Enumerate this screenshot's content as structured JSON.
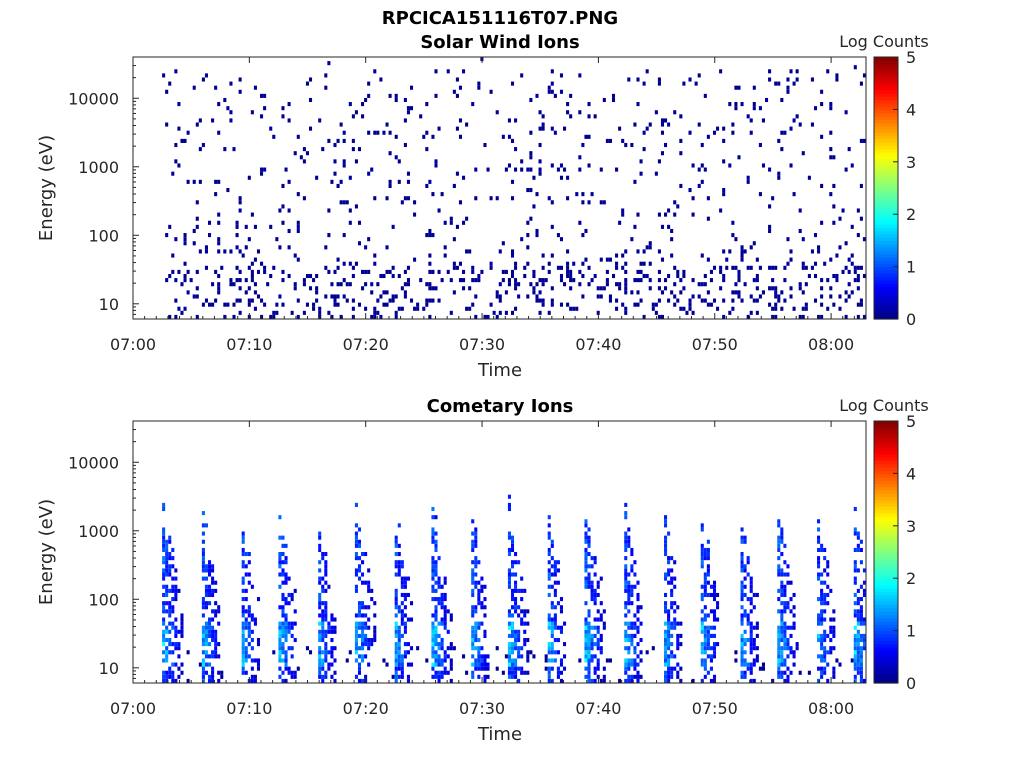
{
  "figure_title": "RPCICA151116T07.PNG",
  "colors": {
    "axes": "#262626",
    "colormap": [
      "#00007f",
      "#0000ff",
      "#007fff",
      "#00ffff",
      "#7fff7f",
      "#ffff00",
      "#ff7f00",
      "#ff0000",
      "#7f0000"
    ]
  },
  "chart_data": [
    {
      "type": "heatmap",
      "title": "Solar Wind Ions",
      "xlabel": "Time",
      "ylabel": "Energy (eV)",
      "x_ticks": [
        "07:00",
        "07:10",
        "07:20",
        "07:30",
        "07:40",
        "07:50",
        "08:00"
      ],
      "xlim": [
        "07:00",
        "08:03"
      ],
      "y_scale": "log",
      "y_ticks": [
        "10",
        "100",
        "1000",
        "10000"
      ],
      "ylim": [
        6,
        40000
      ],
      "colorbar": {
        "label": "Log Counts",
        "range": [
          0,
          5
        ],
        "ticks": [
          "0",
          "1",
          "2",
          "3",
          "4",
          "5"
        ]
      },
      "data_start": "07:02.5",
      "data_end": "08:03",
      "typical_log_counts": 0.1,
      "pattern": "sparse scattered counts across 6 eV to 20 keV, denser below 40 eV"
    },
    {
      "type": "heatmap",
      "title": "Cometary Ions",
      "xlabel": "Time",
      "ylabel": "Energy (eV)",
      "x_ticks": [
        "07:00",
        "07:10",
        "07:20",
        "07:30",
        "07:40",
        "07:50",
        "08:00"
      ],
      "xlim": [
        "07:00",
        "08:03"
      ],
      "y_scale": "log",
      "y_ticks": [
        "10",
        "100",
        "1000",
        "10000"
      ],
      "ylim": [
        6,
        40000
      ],
      "colorbar": {
        "label": "Log Counts",
        "range": [
          0,
          5
        ],
        "ticks": [
          "0",
          "1",
          "2",
          "3",
          "4",
          "5"
        ]
      },
      "data_start": "07:02.5",
      "data_end": "08:03",
      "burst_period_min": 3.3,
      "burst_peak_log_counts": 1.8,
      "pattern": "periodic bursts every ~3.3 min, peaking 10-40 eV with tails to ~1 keV"
    }
  ]
}
